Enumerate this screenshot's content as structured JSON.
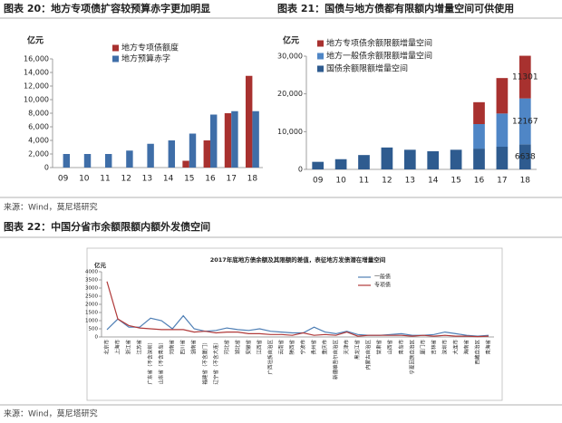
{
  "headers": [
    "图表 20：地方专项债扩容较预算赤字更加明显",
    "图表 21：国债与地方债都有限额内增量空间可供使用",
    "图表 22：中国分省市余额限额内额外发债空间"
  ],
  "sources": [
    "来源：Wind，莫尼塔研究",
    "来源：Wind，莫尼塔研究"
  ],
  "chart_data": [
    {
      "type": "bar",
      "ylabel": "亿元",
      "legend": "top-center",
      "categories": [
        "09",
        "10",
        "11",
        "12",
        "13",
        "14",
        "15",
        "16",
        "17",
        "18"
      ],
      "series": [
        {
          "name": "地方专项债额度",
          "color": "#a8312f",
          "values": [
            null,
            null,
            null,
            null,
            null,
            null,
            1000,
            4000,
            8000,
            13500
          ]
        },
        {
          "name": "地方预算赤字",
          "color": "#3f6ea8",
          "values": [
            2000,
            2000,
            2000,
            2500,
            3500,
            4000,
            5000,
            7800,
            8300,
            8300
          ]
        }
      ],
      "ylim": [
        0,
        16000
      ],
      "yticks": [
        0,
        {
          "value": 2000,
          "label": "2,000"
        },
        {
          "value": 4000,
          "label": "4,000"
        },
        {
          "value": 6000,
          "label": "6,000"
        },
        {
          "value": 8000,
          "label": "8,000"
        },
        {
          "value": 10000,
          "label": "10,000"
        },
        {
          "value": 12000,
          "label": "12,000"
        },
        {
          "value": 14000,
          "label": "14,000"
        },
        {
          "value": 16000,
          "label": "16,000"
        }
      ],
      "grid": false
    },
    {
      "type": "bar",
      "stacked": true,
      "ylabel": "亿元",
      "legend": "top-left",
      "data_labels": "last",
      "categories": [
        "09",
        "10",
        "11",
        "12",
        "13",
        "14",
        "15",
        "16",
        "17",
        "18"
      ],
      "series": [
        {
          "name": "地方专项债余额限额增量空间",
          "color": "#a8312f",
          "values": [
            null,
            null,
            null,
            null,
            null,
            null,
            null,
            5800,
            9400,
            11301
          ]
        },
        {
          "name": "地方一般债余额限额增量空间",
          "color": "#4f86c6",
          "values": [
            null,
            null,
            null,
            null,
            null,
            null,
            null,
            6500,
            8800,
            12167
          ]
        },
        {
          "name": "国债余额限额增量空间",
          "color": "#2e5b8f",
          "values": [
            2000,
            2700,
            3800,
            5800,
            5200,
            4800,
            5200,
            5500,
            6000,
            6638
          ]
        }
      ],
      "ylim": [
        0,
        30000
      ],
      "yticks": [
        0,
        {
          "value": 10000,
          "label": "10,000"
        },
        {
          "value": 20000,
          "label": "20,000"
        },
        {
          "value": 30000,
          "label": "30,000"
        }
      ],
      "grid": false
    },
    {
      "type": "line",
      "title": "2017年底地方债余额及其限额的差值，表征地方发债潜在增量空间",
      "ylabel": "亿元",
      "legend": "top-right",
      "categories": [
        "北京市",
        "上海市",
        "浙江省",
        "江苏省",
        "广东省（不含深圳）",
        "山东省（不含青岛）",
        "河南省",
        "四川省",
        "湖南省",
        "福建省（不含厦门）",
        "辽宁省（不含大连）",
        "河北省",
        "湖北省",
        "安徽省",
        "江西省",
        "广西壮族自治区",
        "云南省",
        "陕西省",
        "宁波市",
        "贵州省",
        "重庆市",
        "新疆维吾尔自治区",
        "天津市",
        "黑龙江省",
        "内蒙古自治区",
        "甘肃省",
        "山西省",
        "青岛市",
        "宁夏回族自治区",
        "厦门市",
        "吉林省",
        "深圳市",
        "大连市",
        "海南省",
        "西藏自治区",
        "青海省"
      ],
      "series": [
        {
          "name": "一般债",
          "color": "#4f7fb5",
          "values": [
            450,
            1100,
            600,
            600,
            1150,
            1000,
            500,
            1300,
            500,
            350,
            400,
            550,
            450,
            400,
            500,
            350,
            300,
            250,
            250,
            600,
            300,
            200,
            350,
            150,
            100,
            100,
            150,
            200,
            100,
            100,
            150,
            300,
            200,
            100,
            50,
            100
          ]
        },
        {
          "name": "专项债",
          "color": "#b03a3a",
          "values": [
            3400,
            1100,
            700,
            550,
            500,
            450,
            450,
            450,
            300,
            350,
            250,
            300,
            300,
            200,
            200,
            150,
            150,
            100,
            250,
            100,
            150,
            100,
            300,
            50,
            100,
            100,
            100,
            100,
            50,
            100,
            50,
            100,
            50,
            50,
            20,
            50
          ]
        }
      ],
      "ylim": [
        0,
        4000
      ],
      "yticks": [
        0,
        500,
        1000,
        1500,
        2000,
        2500,
        3000,
        3500,
        4000
      ],
      "grid": false
    }
  ]
}
